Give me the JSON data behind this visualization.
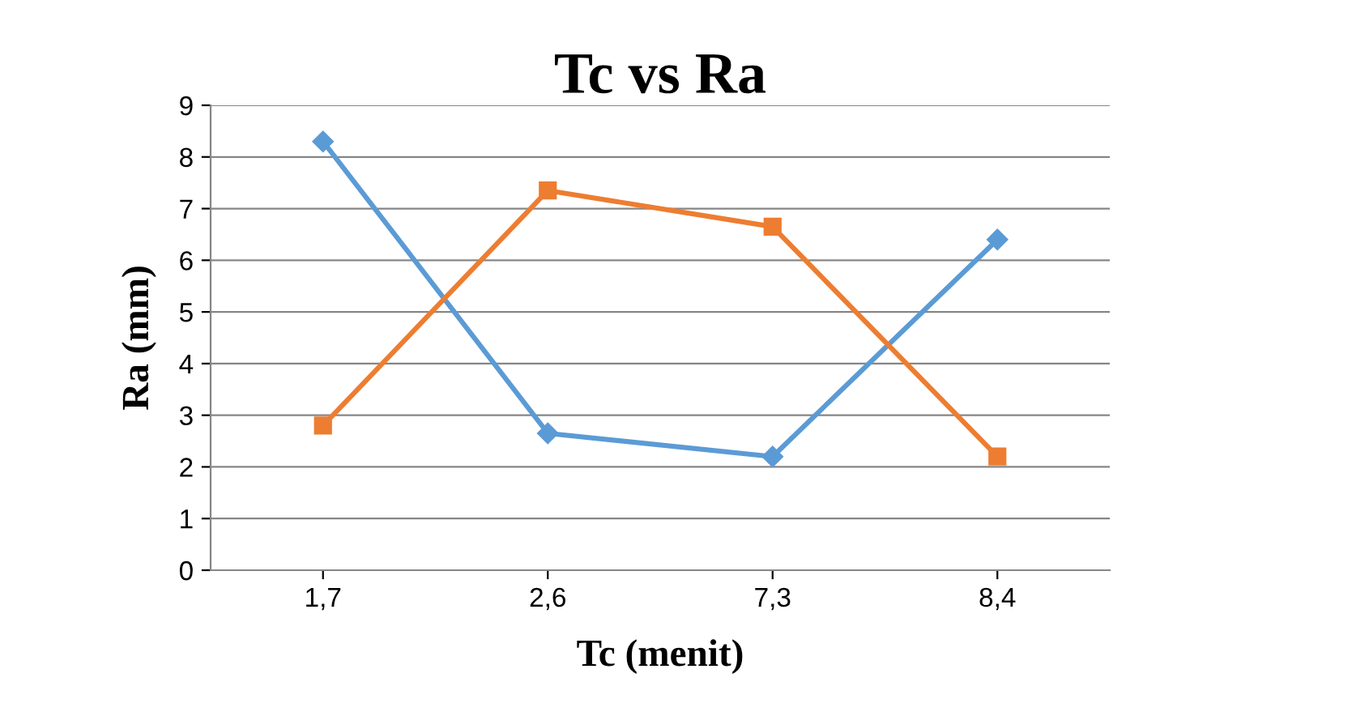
{
  "chart_data": {
    "type": "line",
    "title": "Tc vs Ra",
    "xlabel": "Tc (menit)",
    "ylabel": "Ra (mm)",
    "categories": [
      "1,7",
      "2,6",
      "7,3",
      "8,4"
    ],
    "series": [
      {
        "color": "#5b9bd5",
        "marker": "diamond",
        "values": [
          8.3,
          2.65,
          2.2,
          6.4
        ]
      },
      {
        "color": "#ed7d31",
        "marker": "square",
        "values": [
          2.8,
          7.35,
          6.65,
          2.2
        ]
      }
    ],
    "ylim": [
      0,
      9
    ],
    "yticks": [
      0,
      1,
      2,
      3,
      4,
      5,
      6,
      7,
      8,
      9
    ],
    "grid": "y",
    "line_style": "solid"
  }
}
